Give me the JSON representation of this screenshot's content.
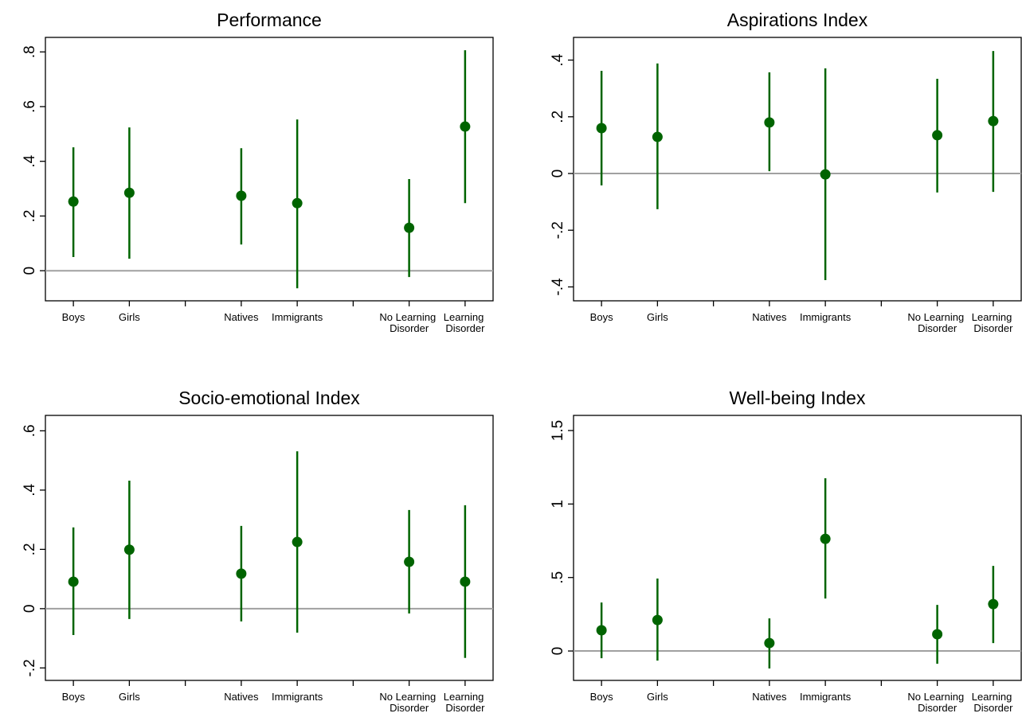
{
  "chart_data": [
    {
      "type": "errorbar",
      "title": "Performance",
      "categories": [
        "Boys",
        "Girls",
        null,
        "Natives",
        "Immigrants",
        null,
        "No Learning Disorder",
        "Learning Disorder"
      ],
      "values": [
        0.253,
        0.285,
        null,
        0.274,
        0.247,
        null,
        0.157,
        0.527
      ],
      "lower": [
        0.05,
        0.044,
        null,
        0.096,
        -0.064,
        null,
        -0.023,
        0.247
      ],
      "upper": [
        0.451,
        0.524,
        null,
        0.448,
        0.553,
        null,
        0.335,
        0.806
      ],
      "color": "#006400",
      "hline": 0,
      "ylim": [
        -0.11,
        0.853
      ],
      "yticks": [
        0,
        {
          "value": 0.2,
          "label": ".2"
        },
        {
          "value": 0.4,
          "label": ".4"
        },
        {
          "value": 0.6,
          "label": ".6"
        },
        {
          "value": 0.8,
          "label": ".8"
        }
      ]
    },
    {
      "type": "errorbar",
      "title": "Aspirations Index",
      "categories": [
        "Boys",
        "Girls",
        null,
        "Natives",
        "Immigrants",
        null,
        "No Learning Disorder",
        "Learning Disorder"
      ],
      "values": [
        0.16,
        0.129,
        null,
        0.18,
        -0.003,
        null,
        0.135,
        0.185
      ],
      "lower": [
        -0.042,
        -0.126,
        null,
        0.008,
        -0.376,
        null,
        -0.067,
        -0.065
      ],
      "upper": [
        0.362,
        0.388,
        null,
        0.357,
        0.371,
        null,
        0.334,
        0.432
      ],
      "color": "#006400",
      "hline": 0,
      "ylim": [
        -0.449,
        0.48
      ],
      "yticks": [
        {
          "value": -0.4,
          "label": "-.4"
        },
        {
          "value": -0.2,
          "label": "-.2"
        },
        0,
        {
          "value": 0.2,
          "label": ".2"
        },
        {
          "value": 0.4,
          "label": ".4"
        }
      ]
    },
    {
      "type": "errorbar",
      "title": "Socio-emotional Index",
      "categories": [
        "Boys",
        "Girls",
        null,
        "Natives",
        "Immigrants",
        null,
        "No Learning Disorder",
        "Learning Disorder"
      ],
      "values": [
        0.091,
        0.199,
        null,
        0.118,
        0.225,
        null,
        0.158,
        0.091
      ],
      "lower": [
        -0.089,
        -0.035,
        null,
        -0.043,
        -0.081,
        null,
        -0.016,
        -0.166
      ],
      "upper": [
        0.274,
        0.432,
        null,
        0.279,
        0.531,
        null,
        0.333,
        0.349
      ],
      "color": "#006400",
      "hline": 0,
      "ylim": [
        -0.242,
        0.652
      ],
      "yticks": [
        {
          "value": -0.2,
          "label": "-.2"
        },
        0,
        {
          "value": 0.2,
          "label": ".2"
        },
        {
          "value": 0.4,
          "label": ".4"
        },
        {
          "value": 0.6,
          "label": ".6"
        }
      ]
    },
    {
      "type": "errorbar",
      "title": "Well-being Index",
      "categories": [
        "Boys",
        "Girls",
        null,
        "Natives",
        "Immigrants",
        null,
        "No Learning Disorder",
        "Learning Disorder"
      ],
      "values": [
        0.141,
        0.211,
        null,
        0.054,
        0.763,
        null,
        0.114,
        0.319
      ],
      "lower": [
        -0.049,
        -0.065,
        null,
        -0.119,
        0.357,
        null,
        -0.087,
        0.054
      ],
      "upper": [
        0.33,
        0.493,
        null,
        0.222,
        1.175,
        null,
        0.314,
        0.579
      ],
      "color": "#006400",
      "hline": 0,
      "ylim": [
        -0.2,
        1.603
      ],
      "yticks": [
        0,
        {
          "value": 0.5,
          "label": ".5"
        },
        1,
        1.5
      ]
    }
  ]
}
